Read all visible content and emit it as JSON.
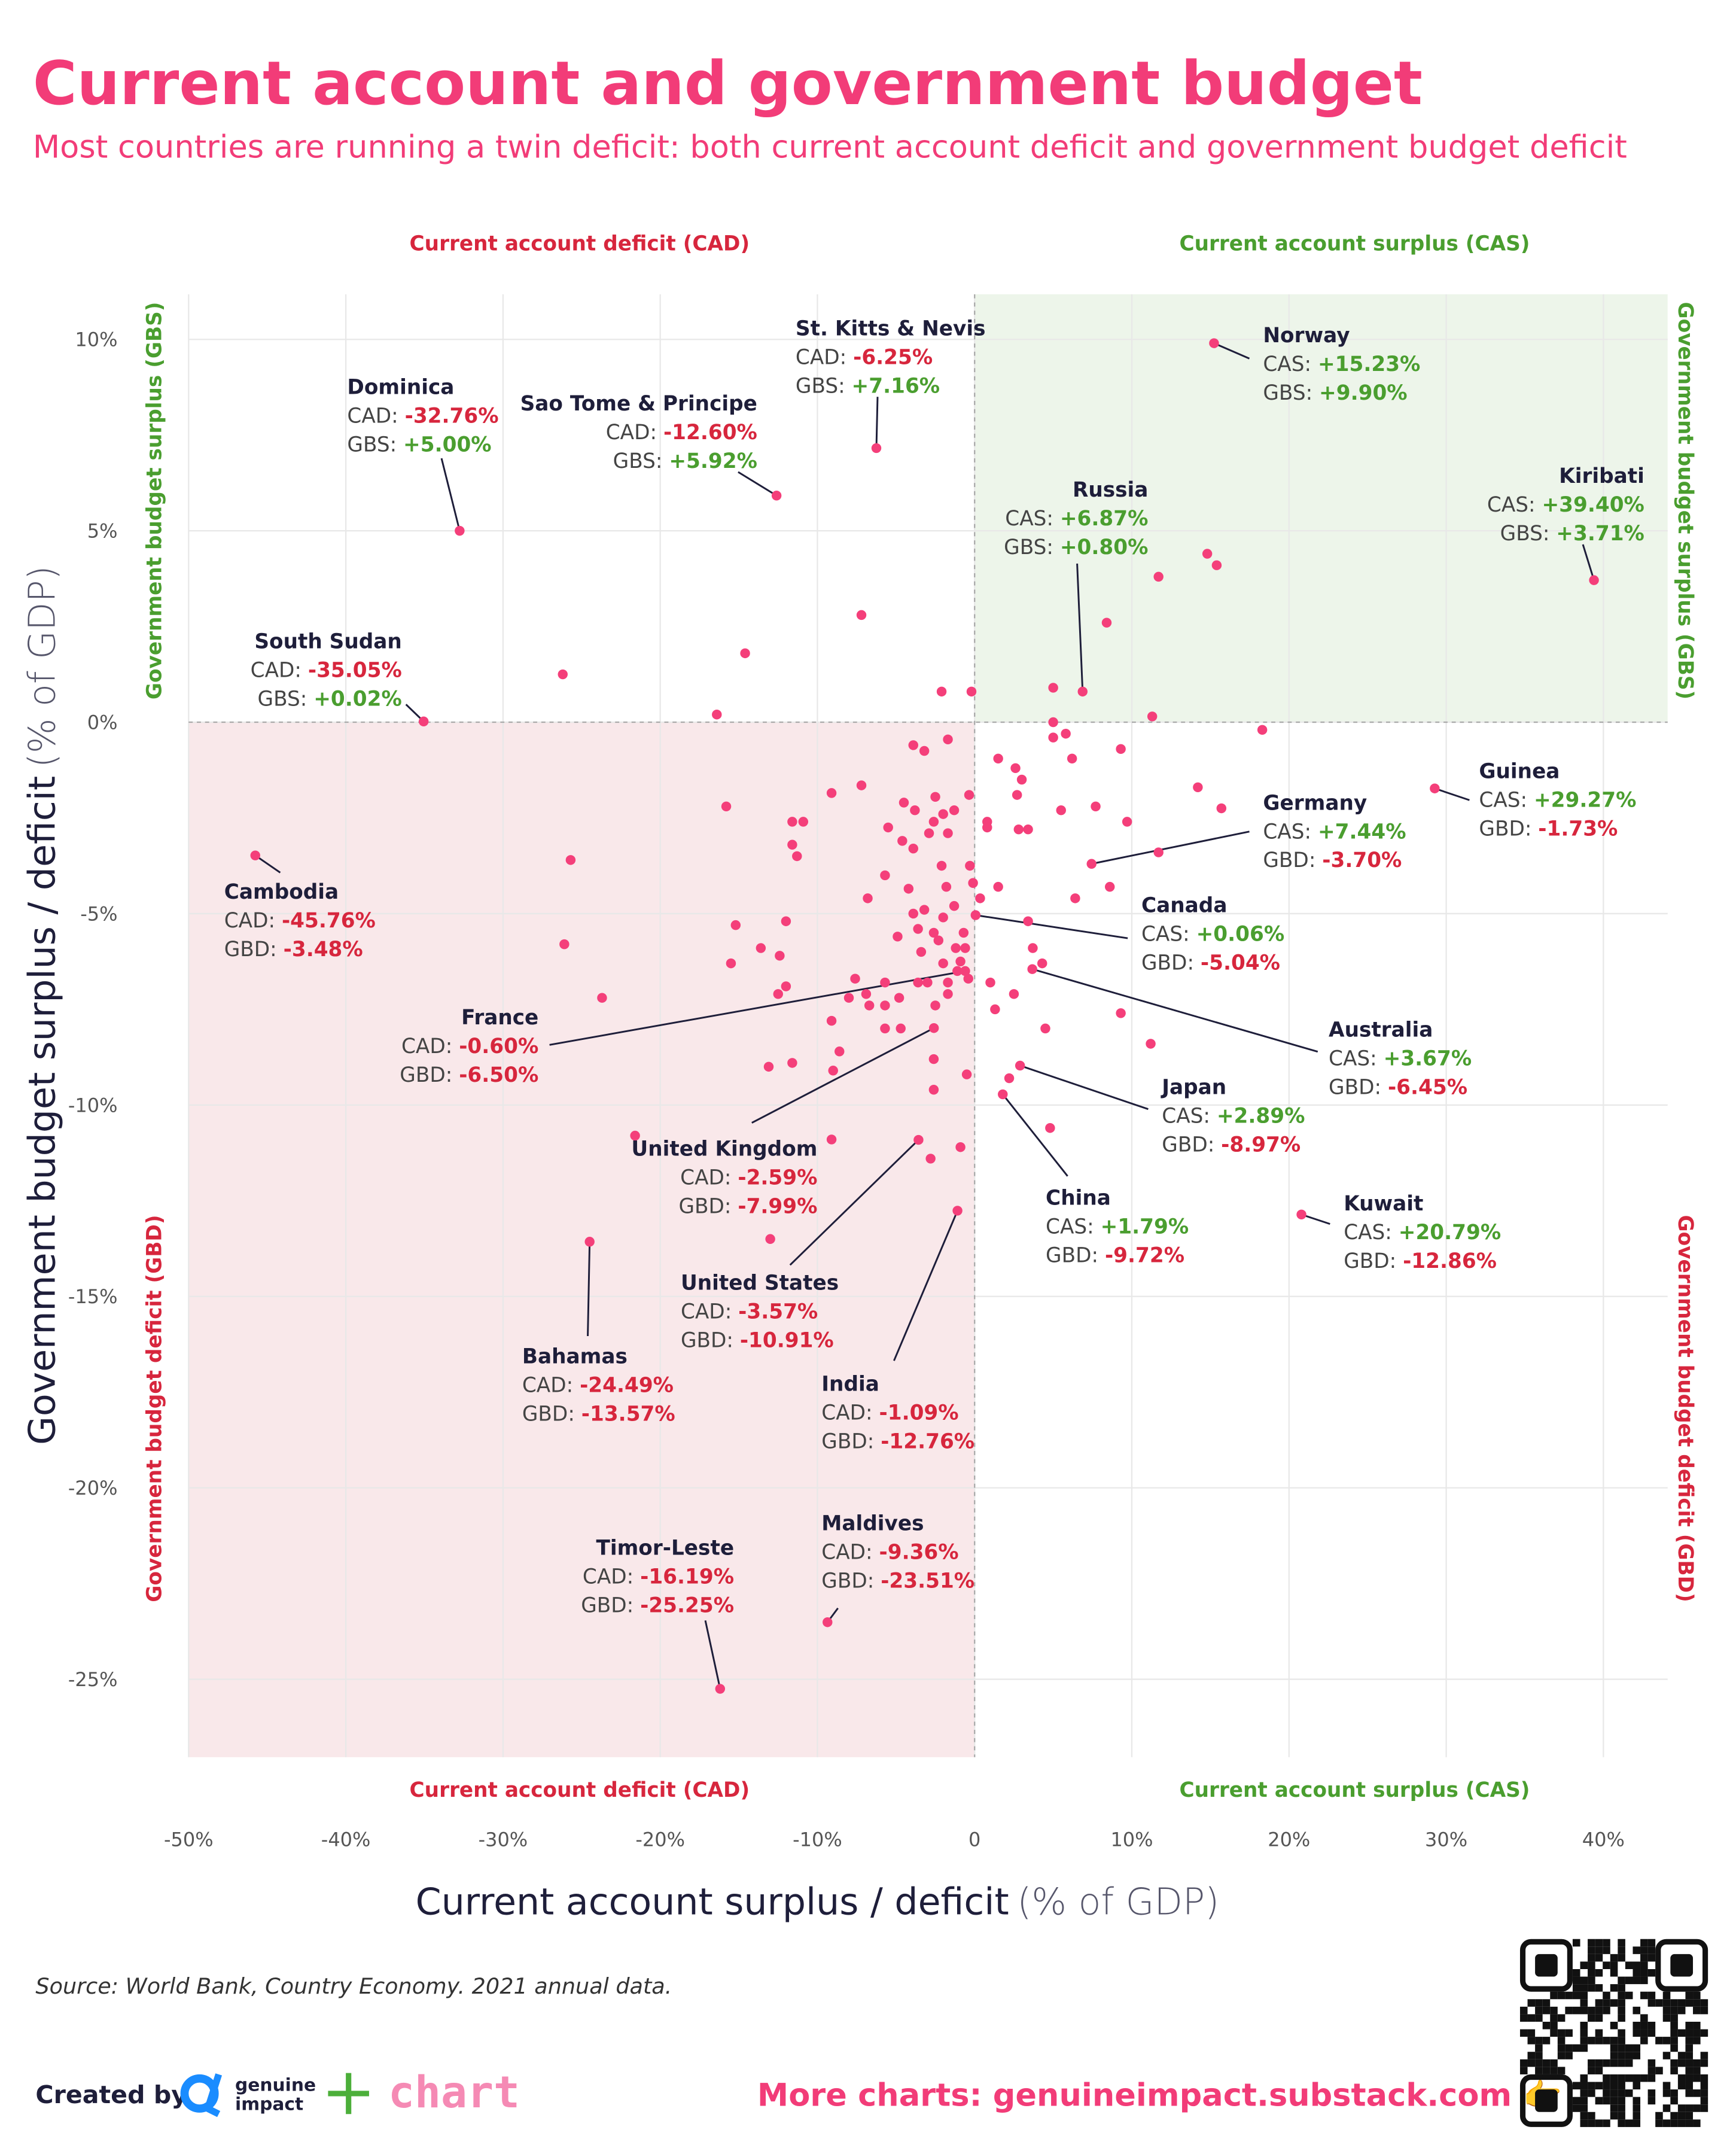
{
  "header": {
    "title": "Current account and government budget",
    "subtitle": "Most countries are running a twin deficit: both current account deficit and government budget deficit"
  },
  "quadrant_labels": {
    "cad": "Current account deficit (CAD)",
    "cas": "Current account surplus (CAS)",
    "gbs": "Government budget surplus (GBS)",
    "gbd": "Government budget deficit (GBD)"
  },
  "chart_data": {
    "type": "scatter",
    "xlabel": "Current account surplus / deficit",
    "xlabel_unit": "(% of GDP)",
    "ylabel": "Government budget surplus / deficit",
    "ylabel_unit": "(% of GDP)",
    "xlim": [
      -50,
      44
    ],
    "ylim": [
      -26.9,
      11.2
    ],
    "x_ticks": [
      {
        "v": -50,
        "l": "-50%"
      },
      {
        "v": -40,
        "l": "-40%"
      },
      {
        "v": -30,
        "l": "-30%"
      },
      {
        "v": -20,
        "l": "-20%"
      },
      {
        "v": -10,
        "l": "-10%"
      },
      {
        "v": 0,
        "l": "0"
      },
      {
        "v": 10,
        "l": "10%"
      },
      {
        "v": 20,
        "l": "20%"
      },
      {
        "v": 30,
        "l": "30%"
      },
      {
        "v": 40,
        "l": "40%"
      }
    ],
    "y_ticks": [
      {
        "v": 10,
        "l": "10%"
      },
      {
        "v": 5,
        "l": "5%"
      },
      {
        "v": 0,
        "l": "0%"
      },
      {
        "v": -5,
        "l": "-5%"
      },
      {
        "v": -10,
        "l": "-10%"
      },
      {
        "v": -15,
        "l": "-15%"
      },
      {
        "v": -20,
        "l": "-20%"
      },
      {
        "v": -25,
        "l": "-25%"
      }
    ],
    "grid": true,
    "colors": {
      "point": "#f43f7a",
      "surplus_shade": "#edf5ea",
      "deficit_shade": "#f9e8ea",
      "negative": "#d7263d",
      "positive": "#4a9e2f"
    },
    "labeled_points": [
      {
        "name": "St. Kitts & Nevis",
        "x": -6.25,
        "y": 7.16
      },
      {
        "name": "Dominica",
        "x": -32.76,
        "y": 5.0
      },
      {
        "name": "Sao Tome & Principe",
        "x": -12.6,
        "y": 5.92
      },
      {
        "name": "Norway",
        "x": 15.23,
        "y": 9.9
      },
      {
        "name": "Kiribati",
        "x": 39.4,
        "y": 3.71
      },
      {
        "name": "Russia",
        "x": 6.87,
        "y": 0.8
      },
      {
        "name": "South Sudan",
        "x": -35.05,
        "y": 0.02
      },
      {
        "name": "Cambodia",
        "x": -45.76,
        "y": -3.48
      },
      {
        "name": "Guinea",
        "x": 29.27,
        "y": -1.73
      },
      {
        "name": "Germany",
        "x": 7.44,
        "y": -3.7
      },
      {
        "name": "Canada",
        "x": 0.06,
        "y": -5.04
      },
      {
        "name": "France",
        "x": -0.6,
        "y": -6.5
      },
      {
        "name": "Australia",
        "x": 3.67,
        "y": -6.45
      },
      {
        "name": "Japan",
        "x": 2.89,
        "y": -8.97
      },
      {
        "name": "United Kingdom",
        "x": -2.59,
        "y": -7.99
      },
      {
        "name": "China",
        "x": 1.79,
        "y": -9.72
      },
      {
        "name": "Kuwait",
        "x": 20.79,
        "y": -12.86
      },
      {
        "name": "United States",
        "x": -3.57,
        "y": -10.91
      },
      {
        "name": "Bahamas",
        "x": -24.49,
        "y": -13.57
      },
      {
        "name": "India",
        "x": -1.09,
        "y": -12.76
      },
      {
        "name": "Maldives",
        "x": -9.36,
        "y": -23.51
      },
      {
        "name": "Timor-Leste",
        "x": -16.19,
        "y": -25.25
      }
    ],
    "other_points": [
      [
        -26.2,
        1.25
      ],
      [
        -14.6,
        1.8
      ],
      [
        -7.2,
        2.8
      ],
      [
        -16.4,
        0.2
      ],
      [
        -2.1,
        0.8
      ],
      [
        -0.2,
        0.8
      ],
      [
        5,
        0.9
      ],
      [
        8.4,
        2.6
      ],
      [
        11.7,
        3.8
      ],
      [
        14.8,
        4.4
      ],
      [
        15.4,
        4.1
      ],
      [
        11.3,
        0.15
      ],
      [
        5,
        0
      ],
      [
        5,
        -0.4
      ],
      [
        5.8,
        -0.3
      ],
      [
        18.3,
        -0.2
      ],
      [
        9.3,
        -0.7
      ],
      [
        6.2,
        -0.95
      ],
      [
        1.5,
        -0.95
      ],
      [
        2.6,
        -1.2
      ],
      [
        3,
        -1.5
      ],
      [
        2.7,
        -1.9
      ],
      [
        5.5,
        -2.3
      ],
      [
        7.7,
        -2.2
      ],
      [
        2.8,
        -2.8
      ],
      [
        3.4,
        -2.8
      ],
      [
        9.7,
        -2.6
      ],
      [
        14.2,
        -1.7
      ],
      [
        15.7,
        -2.25
      ],
      [
        11.7,
        -3.4
      ],
      [
        6.4,
        -4.6
      ],
      [
        8.6,
        -4.3
      ],
      [
        1.5,
        -4.3
      ],
      [
        3.4,
        -5.2
      ],
      [
        0.35,
        -4.6
      ],
      [
        3.7,
        -5.9
      ],
      [
        4.3,
        -6.3
      ],
      [
        4.5,
        -8
      ],
      [
        1.3,
        -7.5
      ],
      [
        2.5,
        -7.1
      ],
      [
        1,
        -6.8
      ],
      [
        9.3,
        -7.6
      ],
      [
        11.2,
        -8.4
      ],
      [
        4.8,
        -10.6
      ],
      [
        2.2,
        -9.3
      ],
      [
        -0.9,
        -11.1
      ],
      [
        -2.8,
        -11.4
      ],
      [
        -9.1,
        -10.9
      ],
      [
        -21.6,
        -10.8
      ],
      [
        -13,
        -13.5
      ],
      [
        -0.5,
        -9.2
      ],
      [
        -2.6,
        -8.8
      ],
      [
        -2.6,
        -9.6
      ],
      [
        -4.7,
        -8
      ],
      [
        -8.6,
        -8.6
      ],
      [
        -9,
        -9.1
      ],
      [
        -13.1,
        -9
      ],
      [
        -11.6,
        -8.9
      ],
      [
        -23.7,
        -7.2
      ],
      [
        -26.1,
        -5.8
      ],
      [
        -25.7,
        -3.6
      ],
      [
        -15.8,
        -2.2
      ],
      [
        -15.2,
        -5.3
      ],
      [
        -15.5,
        -6.3
      ],
      [
        -13.6,
        -5.9
      ],
      [
        -12.4,
        -6.1
      ],
      [
        -12,
        -5.2
      ],
      [
        -12.5,
        -7.1
      ],
      [
        -12,
        -6.9
      ],
      [
        -11.6,
        -2.6
      ],
      [
        -10.9,
        -2.6
      ],
      [
        -11.6,
        -3.2
      ],
      [
        -11.3,
        -3.5
      ],
      [
        -9.1,
        -1.85
      ],
      [
        -7.2,
        -1.65
      ],
      [
        -9.1,
        -7.8
      ],
      [
        -7.6,
        -6.7
      ],
      [
        -8,
        -7.2
      ],
      [
        -6.9,
        -7.1
      ],
      [
        -6.7,
        -7.4
      ],
      [
        -5.7,
        -6.8
      ],
      [
        -5.7,
        -7.4
      ],
      [
        -5.7,
        -8
      ],
      [
        -4.8,
        -7.2
      ],
      [
        -3.9,
        -0.6
      ],
      [
        -3.2,
        -0.75
      ],
      [
        -1.7,
        -0.45
      ],
      [
        -4.5,
        -2.1
      ],
      [
        -3.8,
        -2.3
      ],
      [
        -2.5,
        -1.95
      ],
      [
        -2,
        -2.4
      ],
      [
        -1.3,
        -2.3
      ],
      [
        -2.6,
        -2.6
      ],
      [
        -5.5,
        -2.75
      ],
      [
        -4.6,
        -3.1
      ],
      [
        -3.9,
        -3.3
      ],
      [
        -2.9,
        -2.9
      ],
      [
        -1.7,
        -2.9
      ],
      [
        -5.7,
        -4
      ],
      [
        -4.2,
        -4.35
      ],
      [
        -2.1,
        -3.75
      ],
      [
        -1.8,
        -4.3
      ],
      [
        -0.35,
        -1.9
      ],
      [
        0.8,
        -2.6
      ],
      [
        0.8,
        -2.75
      ],
      [
        -0.3,
        -3.75
      ],
      [
        -0.1,
        -4.2
      ],
      [
        -6.8,
        -4.6
      ],
      [
        -4.9,
        -5.6
      ],
      [
        -3.9,
        -5
      ],
      [
        -3.2,
        -4.9
      ],
      [
        -2,
        -5.1
      ],
      [
        -1.3,
        -4.8
      ],
      [
        -0.7,
        -5.5
      ],
      [
        -0.6,
        -5.9
      ],
      [
        -1.2,
        -5.9
      ],
      [
        -2.3,
        -5.7
      ],
      [
        -3.4,
        -6
      ],
      [
        -3.6,
        -6.8
      ],
      [
        -2,
        -6.3
      ],
      [
        -1.7,
        -6.8
      ],
      [
        -1.7,
        -7.1
      ],
      [
        -3,
        -6.8
      ],
      [
        -0.4,
        -6.7
      ],
      [
        -2.5,
        -7.4
      ],
      [
        -1.1,
        -6.5
      ],
      [
        -3.6,
        -5.4
      ],
      [
        -2.6,
        -5.5
      ],
      [
        -0.9,
        -6.25
      ]
    ]
  },
  "footer": {
    "source": "Source: World Bank, Country Economy. 2021 annual data.",
    "created_by": "Created by",
    "logo_text_1": "genuine",
    "logo_text_2": "impact",
    "chart_logo": "chart",
    "more": "More charts: genuineimpact.substack.com 👉"
  }
}
